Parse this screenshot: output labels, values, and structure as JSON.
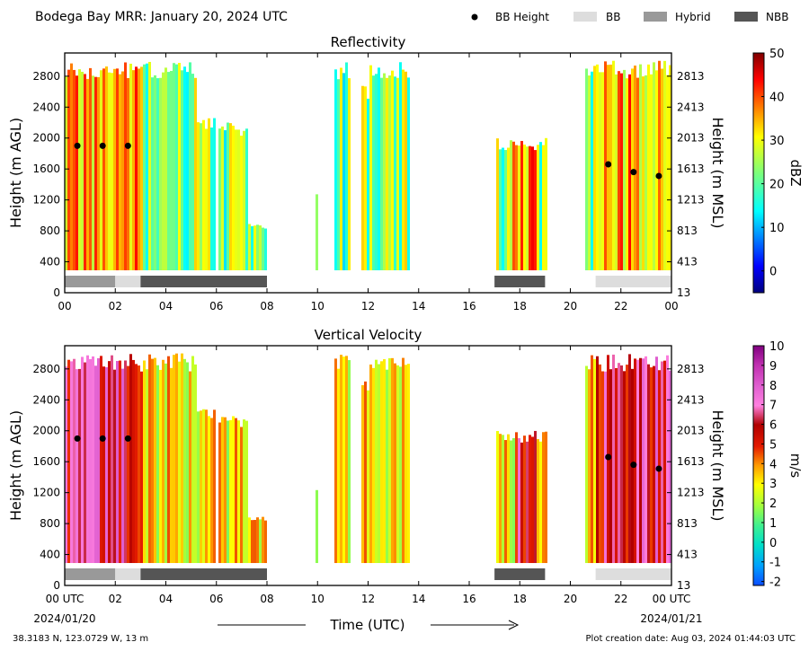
{
  "header": {
    "title": "Bodega Bay MRR:  January 20, 2024 UTC"
  },
  "legend": {
    "items": [
      {
        "label": "BB Height",
        "kind": "marker",
        "color": "#000000"
      },
      {
        "label": "BB",
        "kind": "patch",
        "color": "#dddddd"
      },
      {
        "label": "Hybrid",
        "kind": "patch",
        "color": "#999999"
      },
      {
        "label": "NBB",
        "kind": "patch",
        "color": "#555555"
      }
    ]
  },
  "footer": {
    "location": "38.3183 N, 123.0729 W, 13 m",
    "creation": "Plot creation date: Aug 03, 2024 01:44:03 UTC",
    "time_label": "Time (UTC)"
  },
  "chart_data": [
    {
      "type": "heatmap",
      "title": "Reflectivity",
      "ylabel": "Height (m AGL)",
      "y2label": "Height (m MSL)",
      "xlabel": "",
      "xlim": [
        0,
        24
      ],
      "ylim": [
        0,
        3100
      ],
      "x_ticks": [
        "00",
        "02",
        "04",
        "06",
        "08",
        "10",
        "12",
        "14",
        "16",
        "18",
        "20",
        "22",
        "00"
      ],
      "y_ticks": [
        0,
        400,
        800,
        1200,
        1600,
        2000,
        2400,
        2800
      ],
      "y2_ticks": [
        13,
        413,
        813,
        1213,
        1613,
        2013,
        2413,
        2813
      ],
      "colorbar": {
        "label": "dBZ",
        "min": -5,
        "max": 50,
        "ticks": [
          0,
          10,
          20,
          30,
          40,
          50
        ],
        "colormap": "jet"
      },
      "bb_height": [
        {
          "x": 0.5,
          "y": 1900
        },
        {
          "x": 1.5,
          "y": 1900
        },
        {
          "x": 2.5,
          "y": 1900
        },
        {
          "x": 21.5,
          "y": 1660
        },
        {
          "x": 22.5,
          "y": 1560
        },
        {
          "x": 23.5,
          "y": 1510
        }
      ],
      "precip_type": [
        {
          "type": "Hybrid",
          "start": 0,
          "end": 2
        },
        {
          "type": "BB",
          "start": 2,
          "end": 3
        },
        {
          "type": "NBB",
          "start": 3,
          "end": 8
        },
        {
          "type": "NBB",
          "start": 17,
          "end": 19
        },
        {
          "type": "BB",
          "start": 21,
          "end": 24
        }
      ]
    },
    {
      "type": "heatmap",
      "title": "Vertical Velocity",
      "ylabel": "Height (m AGL)",
      "y2label": "Height (m MSL)",
      "xlabel": "Time (UTC)",
      "xlim": [
        0,
        24
      ],
      "ylim": [
        0,
        3100
      ],
      "x_ticks": [
        "00 UTC",
        "02",
        "04",
        "06",
        "08",
        "10",
        "12",
        "14",
        "16",
        "18",
        "20",
        "22",
        "00 UTC"
      ],
      "x_dates": [
        "2024/01/20",
        "2024/01/21"
      ],
      "y_ticks": [
        0,
        400,
        800,
        1200,
        1600,
        2000,
        2400,
        2800
      ],
      "y2_ticks": [
        13,
        413,
        813,
        1213,
        1613,
        2013,
        2413,
        2813
      ],
      "colorbar": {
        "label": "m/s",
        "min": -2.2,
        "max": 10,
        "ticks": [
          -2,
          -1,
          0,
          1,
          2,
          3,
          4,
          5,
          6,
          7,
          8,
          9,
          10
        ],
        "colormap": "velocity"
      },
      "bb_height": [
        {
          "x": 0.5,
          "y": 1900
        },
        {
          "x": 1.5,
          "y": 1900
        },
        {
          "x": 2.5,
          "y": 1900
        },
        {
          "x": 21.5,
          "y": 1660
        },
        {
          "x": 22.5,
          "y": 1560
        },
        {
          "x": 23.5,
          "y": 1510
        }
      ],
      "precip_type": [
        {
          "type": "Hybrid",
          "start": 0,
          "end": 2
        },
        {
          "type": "BB",
          "start": 2,
          "end": 3
        },
        {
          "type": "NBB",
          "start": 3,
          "end": 8
        },
        {
          "type": "NBB",
          "start": 17,
          "end": 19
        },
        {
          "type": "BB",
          "start": 21,
          "end": 24
        }
      ]
    }
  ]
}
